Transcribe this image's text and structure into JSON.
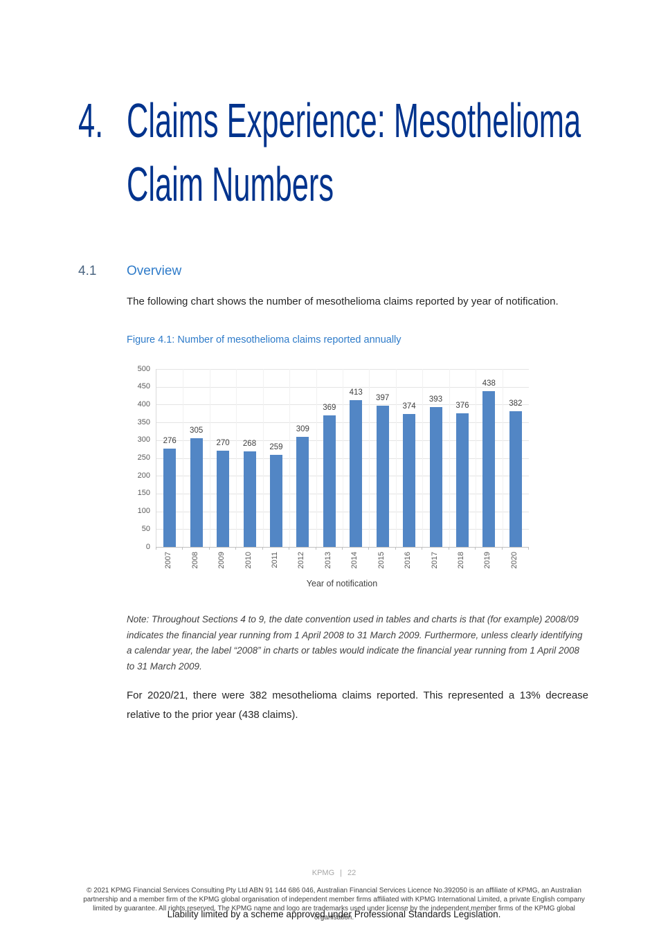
{
  "chapter": {
    "number": "4.",
    "title_line1": "Claims Experience: Mesothelioma",
    "title_line2": "Claim Numbers"
  },
  "section": {
    "number": "4.1",
    "title": "Overview"
  },
  "intro_paragraph": "The following chart shows the number of mesothelioma claims reported by year of notification.",
  "figure_caption": "Figure 4.1: Number of mesothelioma claims reported annually",
  "chart_data": {
    "type": "bar",
    "title": "Figure 4.1: Number of mesothelioma claims reported annually",
    "categories": [
      "2007",
      "2008",
      "2009",
      "2010",
      "2011",
      "2012",
      "2013",
      "2014",
      "2015",
      "2016",
      "2017",
      "2018",
      "2019",
      "2020"
    ],
    "values": [
      276,
      305,
      270,
      268,
      259,
      309,
      369,
      413,
      397,
      374,
      393,
      376,
      438,
      382
    ],
    "xlabel": "Year of notification",
    "ylabel": "",
    "ylim": [
      0,
      500
    ],
    "ytick_step": 50,
    "bar_color": "#5286C5",
    "grid": true,
    "legend": false,
    "data_labels": true
  },
  "note_paragraph": "Note: Throughout Sections 4 to 9, the date convention used in tables and charts is that (for example) 2008/09 indicates the financial year running from 1 April 2008 to 31 March 2009. Furthermore, unless clearly identifying a calendar year, the label “2008” in charts or tables would indicate the financial year running from 1 April 2008 to 31 March 2009.",
  "result_paragraph": "For 2020/21, there were 382 mesothelioma claims reported. This represented a 13% decrease relative to the prior year (438 claims).",
  "footer": {
    "brand": "KPMG",
    "divider": "|",
    "page_number": "22",
    "copyright": "© 2021 KPMG Financial Services Consulting Pty Ltd ABN 91 144 686 046, Australian Financial Services Licence No.392050 is an affiliate of KPMG, an Australian partnership and a member firm of the KPMG global organisation of independent member firms affiliated with KPMG International Limited, a private English company limited by guarantee. All rights reserved. The KPMG name and logo are trademarks used under license by the independent member firms of the KPMG global organisation.",
    "liability": "Liability limited by a scheme approved under Professional Standards Legislation."
  },
  "colors": {
    "chapter_blue": "#00338D",
    "section_blue": "#2E7BC9",
    "bar_blue": "#5286C5"
  }
}
